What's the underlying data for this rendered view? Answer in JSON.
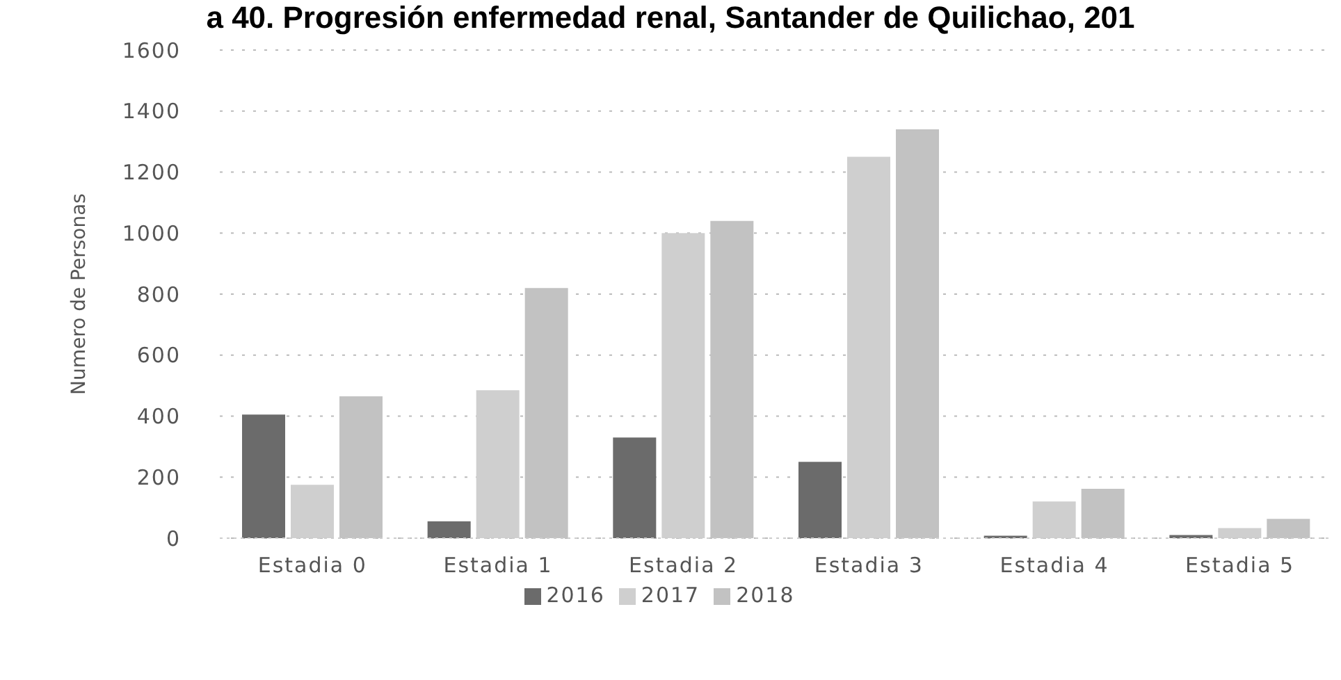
{
  "chart_data": {
    "type": "bar",
    "title": "a 40. Progresión enfermedad renal, Santander de Quilichao, 201",
    "ylabel": "Numero de Personas",
    "categories": [
      "Estadia 0",
      "Estadia 1",
      "Estadia 2",
      "Estadia 3",
      "Estadia 4",
      "Estadia 5"
    ],
    "series": [
      {
        "name": "2016",
        "color": "#6b6b6b",
        "values": [
          405,
          55,
          330,
          250,
          8,
          10
        ]
      },
      {
        "name": "2017",
        "color": "#cfcfcf",
        "values": [
          175,
          485,
          1000,
          1250,
          120,
          33
        ]
      },
      {
        "name": "2018",
        "color": "#c2c2c2",
        "values": [
          465,
          820,
          1040,
          1340,
          162,
          63
        ]
      }
    ],
    "ylim": [
      0,
      1600
    ],
    "yticks": [
      0,
      200,
      400,
      600,
      800,
      1000,
      1200,
      1400,
      1600
    ],
    "grid": "y",
    "legend": "bottom"
  }
}
